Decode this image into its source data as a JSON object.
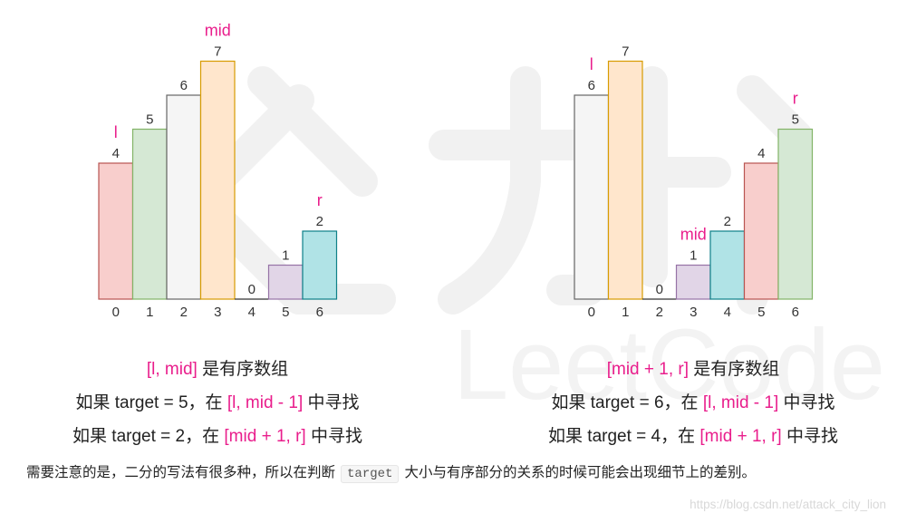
{
  "charts": [
    {
      "values": [
        4,
        5,
        6,
        7,
        0,
        1,
        2
      ],
      "indices": [
        "0",
        "1",
        "2",
        "3",
        "4",
        "5",
        "6"
      ],
      "value_labels": [
        "4",
        "5",
        "6",
        "7",
        "0",
        "1",
        "2"
      ],
      "colors": [
        {
          "fill": "#f8cecc",
          "stroke": "#b85450"
        },
        {
          "fill": "#d5e8d4",
          "stroke": "#82b366"
        },
        {
          "fill": "#f5f5f5",
          "stroke": "#666666"
        },
        {
          "fill": "#ffe6cc",
          "stroke": "#d79b00"
        },
        {
          "fill": "#ffffff",
          "stroke": "#333333"
        },
        {
          "fill": "#e1d5e7",
          "stroke": "#9673a6"
        },
        {
          "fill": "#b0e3e6",
          "stroke": "#0e8088"
        }
      ],
      "pointers": [
        {
          "label": "l",
          "index": 0
        },
        {
          "label": "mid",
          "index": 3
        },
        {
          "label": "r",
          "index": 6
        }
      ],
      "captions": [
        [
          {
            "t": "[l, mid]",
            "hl": true
          },
          {
            "t": " 是有序数组",
            "hl": false
          }
        ],
        [
          {
            "t": "如果 target = 5，在 ",
            "hl": false
          },
          {
            "t": "[l, mid - 1]",
            "hl": true
          },
          {
            "t": " 中寻找",
            "hl": false
          }
        ],
        [
          {
            "t": "如果 target = 2，在 ",
            "hl": false
          },
          {
            "t": "[mid + 1, r]",
            "hl": true
          },
          {
            "t": " 中寻找",
            "hl": false
          }
        ]
      ]
    },
    {
      "values": [
        6,
        7,
        0,
        1,
        2,
        4,
        5
      ],
      "indices": [
        "0",
        "1",
        "2",
        "3",
        "4",
        "5",
        "6"
      ],
      "value_labels": [
        "6",
        "7",
        "0",
        "1",
        "2",
        "4",
        "5"
      ],
      "colors": [
        {
          "fill": "#f5f5f5",
          "stroke": "#666666"
        },
        {
          "fill": "#ffe6cc",
          "stroke": "#d79b00"
        },
        {
          "fill": "#ffffff",
          "stroke": "#333333"
        },
        {
          "fill": "#e1d5e7",
          "stroke": "#9673a6"
        },
        {
          "fill": "#b0e3e6",
          "stroke": "#0e8088"
        },
        {
          "fill": "#f8cecc",
          "stroke": "#b85450"
        },
        {
          "fill": "#d5e8d4",
          "stroke": "#82b366"
        }
      ],
      "pointers": [
        {
          "label": "l",
          "index": 0
        },
        {
          "label": "mid",
          "index": 3
        },
        {
          "label": "r",
          "index": 6
        }
      ],
      "captions": [
        [
          {
            "t": "[mid + 1, r]",
            "hl": true
          },
          {
            "t": " 是有序数组",
            "hl": false
          }
        ],
        [
          {
            "t": "如果 target = 6，在 ",
            "hl": false
          },
          {
            "t": "[l, mid - 1]",
            "hl": true
          },
          {
            "t": " 中寻找",
            "hl": false
          }
        ],
        [
          {
            "t": "如果 target = 4，在 ",
            "hl": false
          },
          {
            "t": "[mid + 1, r]",
            "hl": true
          },
          {
            "t": " 中寻找",
            "hl": false
          }
        ]
      ]
    }
  ],
  "paragraph": {
    "before": "需要注意的是，二分的写法有很多种，所以在判断",
    "code": "target",
    "after": "大小与有序部分的关系的时候可能会出现细节上的差别。"
  },
  "credit": "https://blog.csdn.net/attack_city_lion",
  "watermark_text": "LeetCode"
}
